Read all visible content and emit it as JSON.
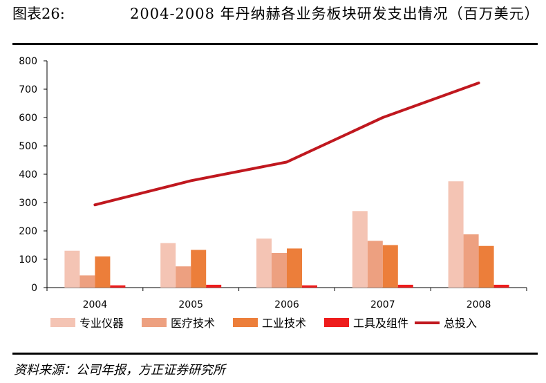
{
  "figure": {
    "label": "图表26:",
    "title": "2004-2008 年丹纳赫各业务板块研发支出情况（百万美元）",
    "source": "资料来源：公司年报，方正证券研究所"
  },
  "chart_data": {
    "type": "bar",
    "categories": [
      "2004",
      "2005",
      "2006",
      "2007",
      "2008"
    ],
    "ylim": [
      0,
      800
    ],
    "yticks": [
      0,
      100,
      200,
      300,
      400,
      500,
      600,
      700,
      800
    ],
    "series": [
      {
        "name": "专业仪器",
        "type": "bar",
        "color": "#F4C4B4",
        "values": [
          130,
          157,
          173,
          270,
          375
        ]
      },
      {
        "name": "医疗技术",
        "type": "bar",
        "color": "#EDA080",
        "values": [
          43,
          75,
          122,
          165,
          188
        ]
      },
      {
        "name": "工业技术",
        "type": "bar",
        "color": "#EC7E3A",
        "values": [
          110,
          133,
          138,
          150,
          147
        ]
      },
      {
        "name": "工具及组件",
        "type": "bar",
        "color": "#EE1C1C",
        "values": [
          8,
          10,
          8,
          10,
          10
        ]
      },
      {
        "name": "总投入",
        "type": "line",
        "color": "#C0181F",
        "values": [
          292,
          377,
          443,
          600,
          722
        ]
      }
    ],
    "legend_position": "bottom",
    "grid": false
  }
}
